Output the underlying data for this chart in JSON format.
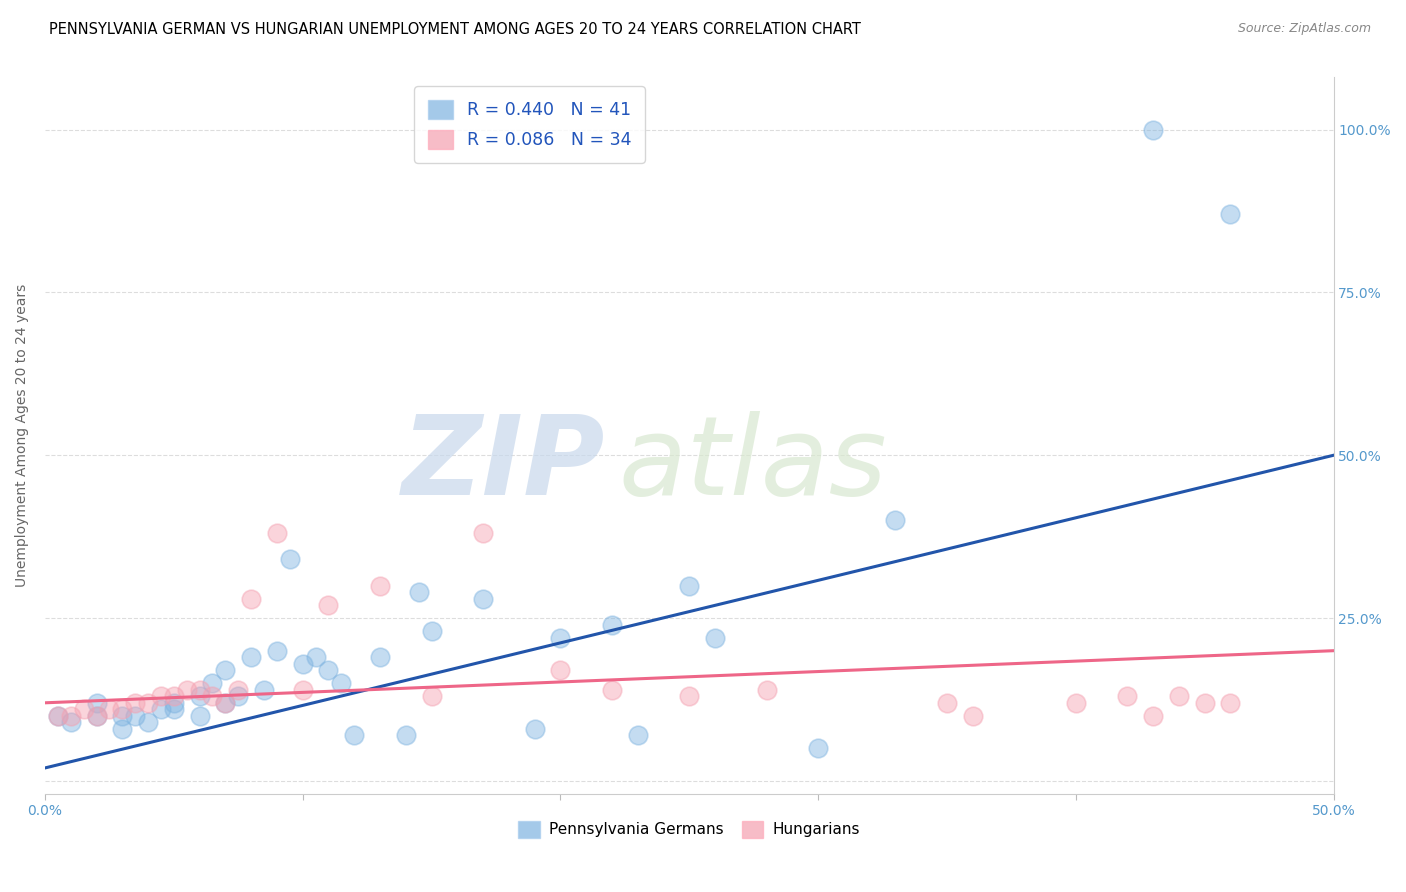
{
  "title": "PENNSYLVANIA GERMAN VS HUNGARIAN UNEMPLOYMENT AMONG AGES 20 TO 24 YEARS CORRELATION CHART",
  "source": "Source: ZipAtlas.com",
  "ylabel": "Unemployment Among Ages 20 to 24 years",
  "xlim": [
    0.0,
    0.5
  ],
  "ylim": [
    -0.02,
    1.08
  ],
  "xticks": [
    0.0,
    0.1,
    0.2,
    0.3,
    0.4,
    0.5
  ],
  "xticklabels": [
    "0.0%",
    "",
    "",
    "",
    "",
    "50.0%"
  ],
  "yticks": [
    0.0,
    0.25,
    0.5,
    0.75,
    1.0
  ],
  "right_yticklabels": [
    "",
    "25.0%",
    "50.0%",
    "75.0%",
    "100.0%"
  ],
  "legend1_label": "R = 0.440   N = 41",
  "legend2_label": "R = 0.086   N = 34",
  "legend_labels_bottom": [
    "Pennsylvania Germans",
    "Hungarians"
  ],
  "blue_color": "#7EB3E0",
  "pink_color": "#F4A0B0",
  "blue_line_color": "#2255AA",
  "pink_line_color": "#EE6688",
  "blue_scatter_x": [
    0.005,
    0.01,
    0.02,
    0.02,
    0.03,
    0.03,
    0.035,
    0.04,
    0.045,
    0.05,
    0.05,
    0.06,
    0.06,
    0.065,
    0.07,
    0.07,
    0.075,
    0.08,
    0.085,
    0.09,
    0.095,
    0.1,
    0.105,
    0.11,
    0.115,
    0.12,
    0.13,
    0.14,
    0.145,
    0.15,
    0.17,
    0.19,
    0.2,
    0.22,
    0.23,
    0.25,
    0.26,
    0.3,
    0.33,
    0.43,
    0.46
  ],
  "blue_scatter_y": [
    0.1,
    0.09,
    0.1,
    0.12,
    0.08,
    0.1,
    0.1,
    0.09,
    0.11,
    0.11,
    0.12,
    0.1,
    0.13,
    0.15,
    0.12,
    0.17,
    0.13,
    0.19,
    0.14,
    0.2,
    0.34,
    0.18,
    0.19,
    0.17,
    0.15,
    0.07,
    0.19,
    0.07,
    0.29,
    0.23,
    0.28,
    0.08,
    0.22,
    0.24,
    0.07,
    0.3,
    0.22,
    0.05,
    0.4,
    1.0,
    0.87
  ],
  "pink_scatter_x": [
    0.005,
    0.01,
    0.015,
    0.02,
    0.025,
    0.03,
    0.035,
    0.04,
    0.045,
    0.05,
    0.055,
    0.06,
    0.065,
    0.07,
    0.075,
    0.08,
    0.09,
    0.1,
    0.11,
    0.13,
    0.15,
    0.17,
    0.2,
    0.22,
    0.25,
    0.28,
    0.35,
    0.36,
    0.4,
    0.42,
    0.43,
    0.44,
    0.45,
    0.46
  ],
  "pink_scatter_y": [
    0.1,
    0.1,
    0.11,
    0.1,
    0.11,
    0.11,
    0.12,
    0.12,
    0.13,
    0.13,
    0.14,
    0.14,
    0.13,
    0.12,
    0.14,
    0.28,
    0.38,
    0.14,
    0.27,
    0.3,
    0.13,
    0.38,
    0.17,
    0.14,
    0.13,
    0.14,
    0.12,
    0.1,
    0.12,
    0.13,
    0.1,
    0.13,
    0.12,
    0.12
  ],
  "blue_line_x": [
    0.0,
    0.5
  ],
  "blue_line_y": [
    0.02,
    0.5
  ],
  "pink_line_x": [
    0.0,
    0.5
  ],
  "pink_line_y": [
    0.12,
    0.2
  ],
  "title_fontsize": 10.5,
  "axis_label_fontsize": 10,
  "tick_fontsize": 10,
  "legend_fontsize": 12.5
}
